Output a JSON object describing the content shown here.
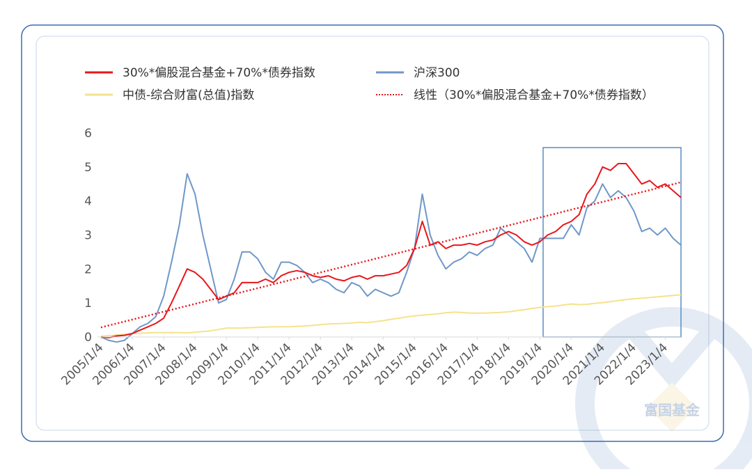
{
  "chart_data": {
    "type": "line",
    "watermark": "富国基金",
    "legend": "top",
    "x": [
      2005,
      2005.25,
      2005.5,
      2005.75,
      2006,
      2006.25,
      2006.5,
      2006.75,
      2007,
      2007.25,
      2007.5,
      2007.75,
      2008,
      2008.25,
      2008.5,
      2008.75,
      2009,
      2009.25,
      2009.5,
      2009.75,
      2010,
      2010.25,
      2010.5,
      2010.75,
      2011,
      2011.25,
      2011.5,
      2011.75,
      2012,
      2012.25,
      2012.5,
      2012.75,
      2013,
      2013.25,
      2013.5,
      2013.75,
      2014,
      2014.25,
      2014.5,
      2014.75,
      2015,
      2015.25,
      2015.5,
      2015.75,
      2016,
      2016.25,
      2016.5,
      2016.75,
      2017,
      2017.25,
      2017.5,
      2017.75,
      2018,
      2018.25,
      2018.5,
      2018.75,
      2019,
      2019.25,
      2019.5,
      2019.75,
      2020,
      2020.25,
      2020.5,
      2020.75,
      2021,
      2021.25,
      2021.5,
      2021.75,
      2022,
      2022.25,
      2022.5,
      2022.75,
      2023,
      2023.25,
      2023.5
    ],
    "series": [
      {
        "name": "30%*偏股混合基金+70%*债券指数",
        "color": "#e8161b",
        "values": [
          0,
          -0.02,
          0.03,
          0.05,
          0.1,
          0.2,
          0.3,
          0.4,
          0.55,
          1.0,
          1.5,
          2.0,
          1.9,
          1.7,
          1.4,
          1.1,
          1.2,
          1.3,
          1.6,
          1.6,
          1.6,
          1.7,
          1.6,
          1.8,
          1.9,
          1.95,
          1.9,
          1.8,
          1.75,
          1.8,
          1.7,
          1.65,
          1.75,
          1.8,
          1.7,
          1.8,
          1.8,
          1.85,
          1.9,
          2.1,
          2.6,
          3.4,
          2.7,
          2.8,
          2.6,
          2.7,
          2.7,
          2.75,
          2.7,
          2.8,
          2.85,
          3.0,
          3.1,
          3.0,
          2.8,
          2.7,
          2.8,
          3.0,
          3.1,
          3.3,
          3.4,
          3.6,
          4.2,
          4.5,
          5.0,
          4.9,
          5.1,
          5.1,
          4.8,
          4.5,
          4.6,
          4.4,
          4.5,
          4.3,
          4.1
        ]
      },
      {
        "name": "沪深300",
        "color": "#6f97c8",
        "values": [
          0,
          -0.1,
          -0.15,
          -0.1,
          0.1,
          0.3,
          0.4,
          0.6,
          1.2,
          2.2,
          3.3,
          4.8,
          4.2,
          3.0,
          2.0,
          1.0,
          1.1,
          1.7,
          2.5,
          2.5,
          2.3,
          1.9,
          1.7,
          2.2,
          2.2,
          2.1,
          1.9,
          1.6,
          1.7,
          1.6,
          1.4,
          1.3,
          1.6,
          1.5,
          1.2,
          1.4,
          1.3,
          1.2,
          1.3,
          1.9,
          2.6,
          4.2,
          3.0,
          2.4,
          2.0,
          2.2,
          2.3,
          2.5,
          2.4,
          2.6,
          2.7,
          3.2,
          3.0,
          2.8,
          2.6,
          2.2,
          2.9,
          2.9,
          2.9,
          2.9,
          3.3,
          3.0,
          3.8,
          4.0,
          4.5,
          4.1,
          4.3,
          4.1,
          3.7,
          3.1,
          3.2,
          3.0,
          3.2,
          2.9,
          2.7
        ]
      },
      {
        "name": "中债-综合财富(总值)指数",
        "color": "#f5e28c",
        "values": [
          0.02,
          0.04,
          0.06,
          0.08,
          0.1,
          0.11,
          0.12,
          0.13,
          0.13,
          0.13,
          0.13,
          0.12,
          0.14,
          0.16,
          0.18,
          0.22,
          0.26,
          0.26,
          0.26,
          0.27,
          0.28,
          0.29,
          0.3,
          0.3,
          0.3,
          0.31,
          0.32,
          0.34,
          0.36,
          0.38,
          0.39,
          0.4,
          0.41,
          0.43,
          0.42,
          0.45,
          0.48,
          0.52,
          0.55,
          0.59,
          0.62,
          0.64,
          0.66,
          0.68,
          0.71,
          0.73,
          0.72,
          0.7,
          0.7,
          0.7,
          0.71,
          0.72,
          0.74,
          0.77,
          0.8,
          0.84,
          0.87,
          0.89,
          0.91,
          0.94,
          0.97,
          0.95,
          0.96,
          0.99,
          1.01,
          1.04,
          1.07,
          1.1,
          1.12,
          1.14,
          1.16,
          1.18,
          1.2,
          1.22,
          1.24
        ]
      },
      {
        "name": "线性（30%*偏股混合基金+70%*债券指数）",
        "color": "#e8161b",
        "dotted": true,
        "x": [
          2005,
          2023.5
        ],
        "values": [
          0.28,
          4.55
        ]
      }
    ],
    "xlim": [
      2005,
      2023.5
    ],
    "xticks": [
      {
        "value": 2005,
        "label": "2005/1/4"
      },
      {
        "value": 2006,
        "label": "2006/1/4"
      },
      {
        "value": 2007,
        "label": "2007/1/4"
      },
      {
        "value": 2008,
        "label": "2008/1/4"
      },
      {
        "value": 2009,
        "label": "2009/1/4"
      },
      {
        "value": 2010,
        "label": "2010/1/4"
      },
      {
        "value": 2011,
        "label": "2011/1/4"
      },
      {
        "value": 2012,
        "label": "2012/1/4"
      },
      {
        "value": 2013,
        "label": "2013/1/4"
      },
      {
        "value": 2014,
        "label": "2014/1/4"
      },
      {
        "value": 2015,
        "label": "2015/1/4"
      },
      {
        "value": 2016,
        "label": "2016/1/4"
      },
      {
        "value": 2017,
        "label": "2017/1/4"
      },
      {
        "value": 2018,
        "label": "2018/1/4"
      },
      {
        "value": 2019,
        "label": "2019/1/4"
      },
      {
        "value": 2020,
        "label": "2020/1/4"
      },
      {
        "value": 2021,
        "label": "2021/1/4"
      },
      {
        "value": 2022,
        "label": "2022/1/4"
      },
      {
        "value": 2023,
        "label": "2023/1/4"
      }
    ],
    "ylim": [
      0,
      6
    ],
    "yticks": [
      0,
      1,
      2,
      3,
      4,
      5,
      6
    ]
  }
}
